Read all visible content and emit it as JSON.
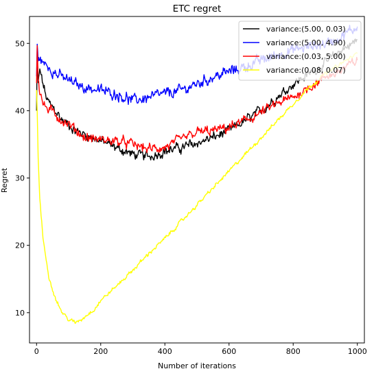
{
  "chart_data": {
    "type": "line",
    "title": "ETC regret",
    "xlabel": "Number of iterations",
    "ylabel": "Regret",
    "xlim": [
      -22,
      1022
    ],
    "ylim": [
      5.5,
      54
    ],
    "xticks": [
      0,
      200,
      400,
      600,
      800,
      1000
    ],
    "yticks": [
      10,
      20,
      30,
      40,
      50
    ],
    "legend_position": "upper-right",
    "grid": false,
    "series": [
      {
        "name": "variance:(5.00, 0.03)",
        "color": "#000000",
        "noise": 0.9,
        "points": [
          [
            0,
            40
          ],
          [
            2,
            48
          ],
          [
            5,
            44
          ],
          [
            10,
            46
          ],
          [
            20,
            44
          ],
          [
            30,
            42
          ],
          [
            40,
            41
          ],
          [
            60,
            40
          ],
          [
            80,
            38.5
          ],
          [
            100,
            38
          ],
          [
            120,
            37
          ],
          [
            150,
            36.5
          ],
          [
            200,
            35.5
          ],
          [
            250,
            34.5
          ],
          [
            300,
            33.5
          ],
          [
            350,
            33.2
          ],
          [
            400,
            34
          ],
          [
            450,
            34.5
          ],
          [
            500,
            35.2
          ],
          [
            550,
            36
          ],
          [
            600,
            37
          ],
          [
            650,
            38.5
          ],
          [
            700,
            40
          ],
          [
            750,
            42
          ],
          [
            800,
            44
          ],
          [
            850,
            45.5
          ],
          [
            900,
            47
          ],
          [
            950,
            49
          ],
          [
            1000,
            50.5
          ]
        ]
      },
      {
        "name": "variance:(5.00, 4.90)",
        "color": "#0000ff",
        "noise": 1.0,
        "points": [
          [
            0,
            45
          ],
          [
            2,
            50
          ],
          [
            5,
            47
          ],
          [
            10,
            48
          ],
          [
            20,
            47
          ],
          [
            40,
            46.5
          ],
          [
            60,
            45.5
          ],
          [
            80,
            45
          ],
          [
            100,
            44.5
          ],
          [
            120,
            44
          ],
          [
            150,
            43.5
          ],
          [
            200,
            43
          ],
          [
            250,
            42.5
          ],
          [
            300,
            41.5
          ],
          [
            350,
            42
          ],
          [
            400,
            42.5
          ],
          [
            450,
            43
          ],
          [
            500,
            44
          ],
          [
            550,
            45
          ],
          [
            600,
            45.8
          ],
          [
            650,
            46.5
          ],
          [
            700,
            47.5
          ],
          [
            750,
            48.3
          ],
          [
            800,
            49
          ],
          [
            850,
            49.5
          ],
          [
            900,
            50
          ],
          [
            950,
            51
          ],
          [
            1000,
            52.5
          ]
        ]
      },
      {
        "name": "variance:(0.03, 5.00)",
        "color": "#ff0000",
        "noise": 0.9,
        "points": [
          [
            0,
            44
          ],
          [
            2,
            50
          ],
          [
            5,
            45
          ],
          [
            10,
            43
          ],
          [
            20,
            41
          ],
          [
            40,
            40
          ],
          [
            60,
            39.5
          ],
          [
            80,
            38.5
          ],
          [
            100,
            38
          ],
          [
            150,
            36
          ],
          [
            200,
            35.7
          ],
          [
            250,
            35.5
          ],
          [
            300,
            35
          ],
          [
            350,
            34.3
          ],
          [
            400,
            34.5
          ],
          [
            450,
            35.7
          ],
          [
            500,
            36.8
          ],
          [
            550,
            37
          ],
          [
            600,
            37.5
          ],
          [
            650,
            38.5
          ],
          [
            700,
            39.7
          ],
          [
            750,
            41
          ],
          [
            800,
            42
          ],
          [
            850,
            43.5
          ],
          [
            900,
            45
          ],
          [
            950,
            46
          ],
          [
            1000,
            47.5
          ]
        ]
      },
      {
        "name": "variance:(0.08, 0.07)",
        "color": "#ffff00",
        "noise": 0.35,
        "points": [
          [
            0,
            43
          ],
          [
            2,
            40
          ],
          [
            5,
            33
          ],
          [
            10,
            27
          ],
          [
            20,
            21
          ],
          [
            30,
            18
          ],
          [
            40,
            15
          ],
          [
            60,
            12
          ],
          [
            80,
            10
          ],
          [
            100,
            9
          ],
          [
            120,
            8.5
          ],
          [
            140,
            9
          ],
          [
            160,
            9.8
          ],
          [
            180,
            10.5
          ],
          [
            200,
            11.8
          ],
          [
            250,
            14
          ],
          [
            300,
            16.3
          ],
          [
            350,
            18.8
          ],
          [
            400,
            21
          ],
          [
            450,
            23.5
          ],
          [
            500,
            26
          ],
          [
            550,
            28.5
          ],
          [
            600,
            31
          ],
          [
            650,
            33.5
          ],
          [
            700,
            36
          ],
          [
            750,
            38.5
          ],
          [
            800,
            41
          ],
          [
            850,
            43.5
          ],
          [
            900,
            45.5
          ],
          [
            950,
            47
          ],
          [
            1000,
            48.5
          ]
        ]
      }
    ]
  }
}
